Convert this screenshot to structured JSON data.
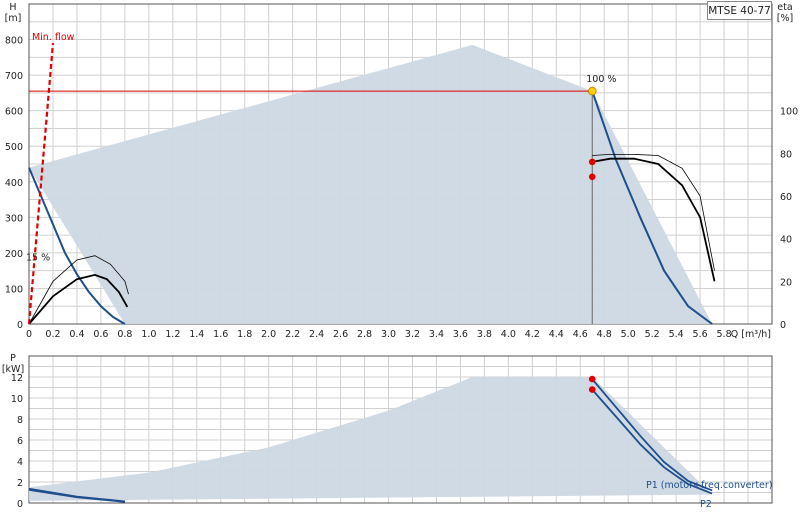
{
  "badge": "MTSE 40-77",
  "colors": {
    "grid": "#d0d0d0",
    "area": "#cdd8e3",
    "curve": "#1f4e8c",
    "red": "#e00000",
    "black": "#000000",
    "axis": "#555555"
  },
  "chart_data": [
    {
      "type": "line",
      "title": "",
      "xlabel": "Q [m³/h]",
      "ylabel": "H [m]",
      "ylabel_right": "eta [%]",
      "xlim": [
        0,
        6.2
      ],
      "ylim": [
        0,
        900
      ],
      "ylim_right": [
        0,
        150
      ],
      "x_ticks": [
        0,
        0.2,
        0.4,
        0.6,
        0.8,
        1.0,
        1.2,
        1.4,
        1.6,
        1.8,
        2.0,
        2.2,
        2.4,
        2.6,
        2.8,
        3.0,
        3.2,
        3.4,
        3.6,
        3.8,
        4.0,
        4.2,
        4.4,
        4.6,
        4.8,
        5.0,
        5.2,
        5.4,
        5.6,
        5.8
      ],
      "x_tick_labels": [
        "0",
        "0.2",
        "0.4",
        "0.6",
        "0.8",
        "1.0",
        "1.2",
        "1.4",
        "1.6",
        "1.8",
        "2.0",
        "2.2",
        "2.4",
        "2.6",
        "2.8",
        "3.0",
        "3.2",
        "3.4",
        "3.6",
        "3.8",
        "4.0",
        "4.2",
        "4.4",
        "4.6",
        "4.8",
        "5.0",
        "5.2",
        "5.4",
        "5.6",
        "5.8"
      ],
      "y_ticks": [
        0,
        100,
        200,
        300,
        400,
        500,
        600,
        700,
        800
      ],
      "y_ticks_right": [
        0,
        20,
        40,
        60,
        80,
        100
      ],
      "grid": true,
      "operating_area": [
        [
          0,
          440
        ],
        [
          3.7,
          785
        ],
        [
          4.7,
          655
        ],
        [
          5.7,
          0
        ],
        [
          0.8,
          0
        ],
        [
          0,
          440
        ]
      ],
      "series": [
        {
          "role": "head-max",
          "points": [
            [
              4.7,
              655
            ],
            [
              4.9,
              460
            ],
            [
              5.1,
              300
            ],
            [
              5.3,
              150
            ],
            [
              5.5,
              50
            ],
            [
              5.7,
              0
            ]
          ]
        },
        {
          "role": "head-min",
          "points": [
            [
              0,
              440
            ],
            [
              0.1,
              360
            ],
            [
              0.2,
              280
            ],
            [
              0.3,
              200
            ],
            [
              0.4,
              140
            ],
            [
              0.5,
              90
            ],
            [
              0.6,
              50
            ],
            [
              0.7,
              20
            ],
            [
              0.8,
              0
            ]
          ]
        },
        {
          "role": "eta-max",
          "axis": "right",
          "points": [
            [
              4.7,
              76
            ],
            [
              4.85,
              77.5
            ],
            [
              5.05,
              77.5
            ],
            [
              5.25,
              75
            ],
            [
              5.45,
              65
            ],
            [
              5.6,
              50
            ],
            [
              5.72,
              20
            ]
          ]
        },
        {
          "role": "eta-min",
          "axis": "right",
          "points": [
            [
              0,
              0
            ],
            [
              0.2,
              13
            ],
            [
              0.4,
              21
            ],
            [
              0.55,
              23
            ],
            [
              0.65,
              21
            ],
            [
              0.75,
              15
            ],
            [
              0.82,
              8
            ]
          ]
        }
      ],
      "thin_series": [
        {
          "role": "eta-max-thin",
          "axis": "right",
          "points": [
            [
              4.7,
              79
            ],
            [
              4.85,
              79.5
            ],
            [
              5.05,
              79.5
            ],
            [
              5.25,
              79
            ],
            [
              5.45,
              73
            ],
            [
              5.6,
              60
            ],
            [
              5.72,
              25
            ]
          ]
        },
        {
          "role": "eta-min-thin",
          "axis": "right",
          "points": [
            [
              0,
              0
            ],
            [
              0.2,
              20
            ],
            [
              0.4,
              30
            ],
            [
              0.55,
              32
            ],
            [
              0.68,
              28
            ],
            [
              0.8,
              20
            ],
            [
              0.83,
              14
            ]
          ]
        }
      ],
      "min_flow_line": {
        "label": "Min. flow",
        "points": [
          [
            0,
            0
          ],
          [
            0.2,
            790
          ]
        ]
      },
      "duty_line": {
        "points": [
          [
            0,
            655
          ],
          [
            4.7,
            655
          ]
        ],
        "vertical_to": 0
      },
      "duty_point": {
        "x": 4.7,
        "y": 655,
        "label": "100 %"
      },
      "eta_points": [
        {
          "x": 4.7,
          "y": 76
        },
        {
          "x": 4.7,
          "y": 69
        }
      ],
      "low_label": {
        "text": "15 %",
        "x": 0,
        "y": 190
      }
    },
    {
      "type": "line",
      "title": "",
      "xlabel": "",
      "ylabel": "P [kW]",
      "xlim": [
        0,
        6.2
      ],
      "ylim": [
        0,
        14
      ],
      "y_ticks": [
        0,
        2,
        4,
        6,
        8,
        10,
        12
      ],
      "grid": true,
      "operating_area": [
        [
          0,
          1.5
        ],
        [
          1.0,
          2.9
        ],
        [
          2.0,
          5.3
        ],
        [
          3.0,
          8.8
        ],
        [
          3.7,
          12
        ],
        [
          4.7,
          12
        ],
        [
          5.7,
          0.8
        ],
        [
          0,
          0.2
        ],
        [
          0,
          1.5
        ]
      ],
      "series": [
        {
          "name": "P1 (motor+freq.converter)",
          "points": [
            [
              4.7,
              11.8
            ],
            [
              4.9,
              9.1
            ],
            [
              5.1,
              6.4
            ],
            [
              5.3,
              3.9
            ],
            [
              5.5,
              2.1
            ],
            [
              5.7,
              1.2
            ]
          ]
        },
        {
          "name": "P2",
          "points": [
            [
              4.7,
              10.8
            ],
            [
              4.9,
              8.2
            ],
            [
              5.1,
              5.6
            ],
            [
              5.3,
              3.4
            ],
            [
              5.5,
              1.8
            ],
            [
              5.7,
              0.9
            ]
          ]
        },
        {
          "role": "P1-min",
          "points": [
            [
              0,
              1.35
            ],
            [
              0.4,
              0.6
            ],
            [
              0.8,
              0.15
            ]
          ]
        },
        {
          "role": "P2-min",
          "points": [
            [
              0,
              1.25
            ],
            [
              0.4,
              0.55
            ],
            [
              0.8,
              0.1
            ]
          ]
        }
      ],
      "points": [
        {
          "x": 4.7,
          "y": 11.8
        },
        {
          "x": 4.7,
          "y": 10.8
        }
      ]
    }
  ]
}
